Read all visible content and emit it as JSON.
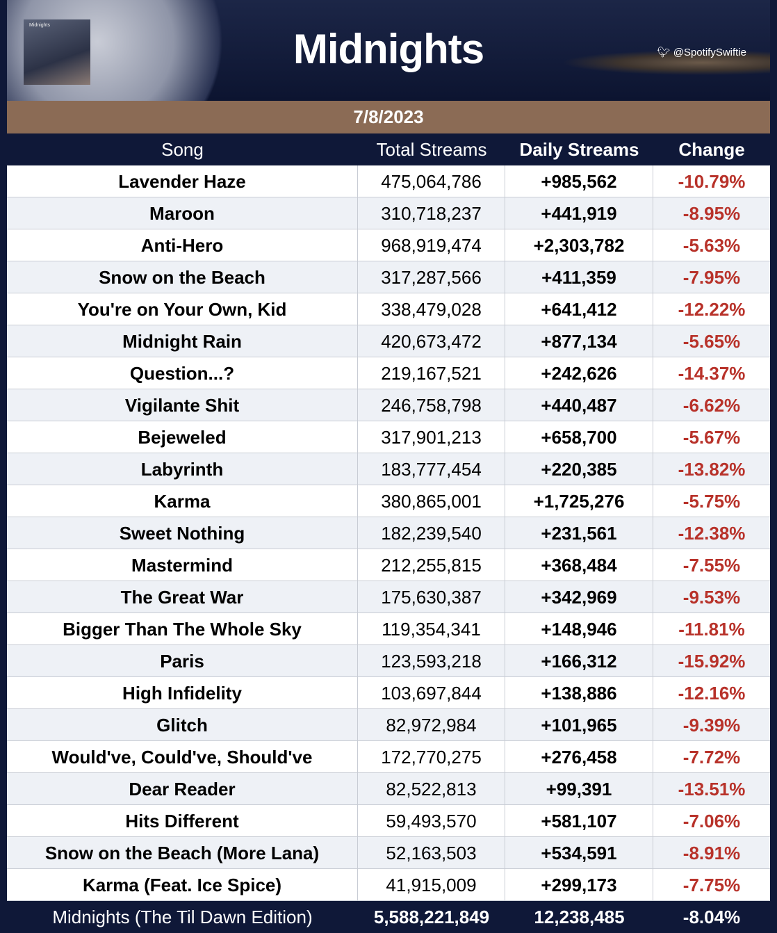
{
  "header": {
    "title": "Midnights",
    "handle": "@SpotifySwiftie",
    "cover_title": "Midnights",
    "date": "7/8/2023"
  },
  "table": {
    "columns": [
      "Song",
      "Total Streams",
      "Daily Streams",
      "Change"
    ],
    "rows": [
      [
        "Lavender Haze",
        "475,064,786",
        "+985,562",
        "-10.79%"
      ],
      [
        "Maroon",
        "310,718,237",
        "+441,919",
        "-8.95%"
      ],
      [
        "Anti-Hero",
        "968,919,474",
        "+2,303,782",
        "-5.63%"
      ],
      [
        "Snow on the Beach",
        "317,287,566",
        "+411,359",
        "-7.95%"
      ],
      [
        "You're on Your Own, Kid",
        "338,479,028",
        "+641,412",
        "-12.22%"
      ],
      [
        "Midnight Rain",
        "420,673,472",
        "+877,134",
        "-5.65%"
      ],
      [
        "Question...?",
        "219,167,521",
        "+242,626",
        "-14.37%"
      ],
      [
        "Vigilante Shit",
        "246,758,798",
        "+440,487",
        "-6.62%"
      ],
      [
        "Bejeweled",
        "317,901,213",
        "+658,700",
        "-5.67%"
      ],
      [
        "Labyrinth",
        "183,777,454",
        "+220,385",
        "-13.82%"
      ],
      [
        "Karma",
        "380,865,001",
        "+1,725,276",
        "-5.75%"
      ],
      [
        "Sweet Nothing",
        "182,239,540",
        "+231,561",
        "-12.38%"
      ],
      [
        "Mastermind",
        "212,255,815",
        "+368,484",
        "-7.55%"
      ],
      [
        "The Great War",
        "175,630,387",
        "+342,969",
        "-9.53%"
      ],
      [
        "Bigger Than The Whole Sky",
        "119,354,341",
        "+148,946",
        "-11.81%"
      ],
      [
        "Paris",
        "123,593,218",
        "+166,312",
        "-15.92%"
      ],
      [
        "High Infidelity",
        "103,697,844",
        "+138,886",
        "-12.16%"
      ],
      [
        "Glitch",
        "82,972,984",
        "+101,965",
        "-9.39%"
      ],
      [
        "Would've, Could've, Should've",
        "172,770,275",
        "+276,458",
        "-7.72%"
      ],
      [
        "Dear Reader",
        "82,522,813",
        "+99,391",
        "-13.51%"
      ],
      [
        "Hits Different",
        "59,493,570",
        "+581,107",
        "-7.06%"
      ],
      [
        "Snow on the Beach (More Lana)",
        "52,163,503",
        "+534,591",
        "-8.91%"
      ],
      [
        "Karma (Feat. Ice Spice)",
        "41,915,009",
        "+299,173",
        "-7.75%"
      ]
    ],
    "total": [
      "Midnights (The Til Dawn Edition)",
      "5,588,221,849",
      "12,238,485",
      "-8.04%"
    ]
  }
}
